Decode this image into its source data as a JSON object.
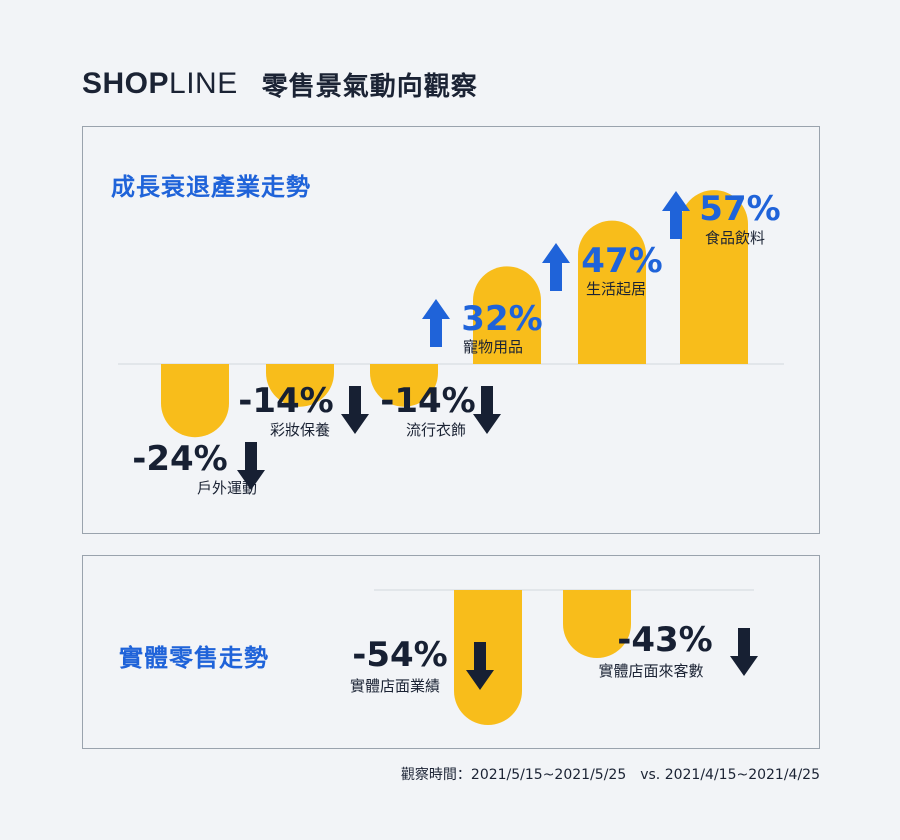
{
  "header": {
    "logo_text_bold": "SHOP",
    "logo_text_light": "LINE",
    "title": "零售景氣動向觀察"
  },
  "colors": {
    "bar": "#f8bd1b",
    "up": "#1f63d9",
    "down": "#172033",
    "text_dark": "#1b2334"
  },
  "chart_data": [
    {
      "type": "bar",
      "title": "成長衰退產業走勢",
      "categories": [
        "戶外運動",
        "彩妝保養",
        "流行衣飾",
        "寵物用品",
        "生活起居",
        "食品飲料"
      ],
      "values": [
        -24,
        -14,
        -14,
        32,
        47,
        57
      ],
      "labels": [
        "-24%",
        "-14%",
        "-14%",
        "32%",
        "47%",
        "57%"
      ],
      "unit": "%"
    },
    {
      "type": "bar",
      "title": "實體零售走勢",
      "categories": [
        "實體店面業績",
        "實體店面來客數"
      ],
      "values": [
        -54,
        -43
      ],
      "labels": [
        "-54%",
        "-43%"
      ],
      "unit": "%"
    }
  ],
  "footnote": "觀察時間：2021/5/15~2021/5/25　vs. 2021/4/15~2021/4/25"
}
